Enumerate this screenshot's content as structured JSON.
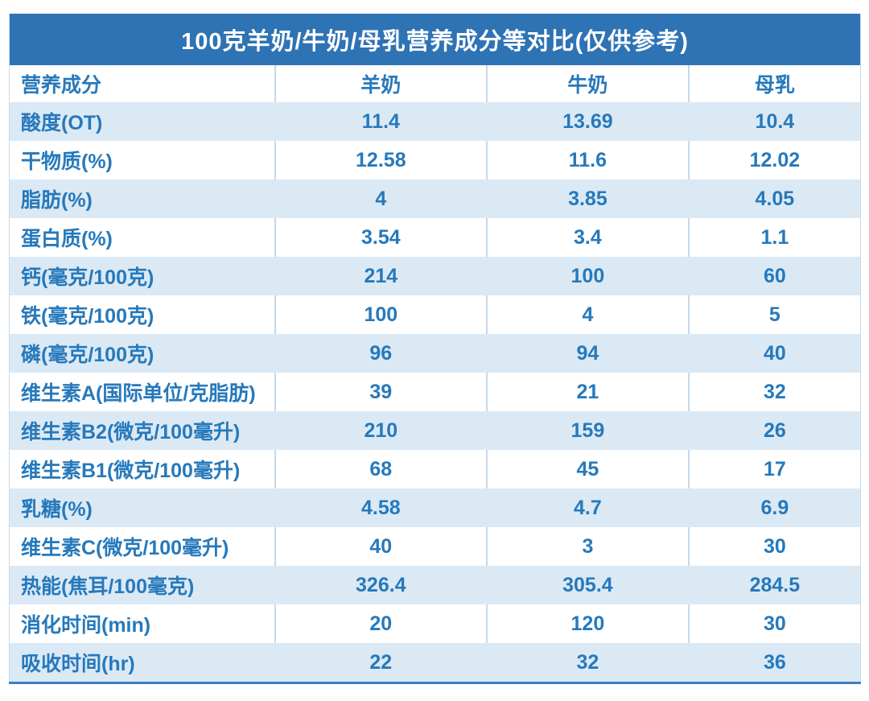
{
  "title": "100克羊奶/牛奶/母乳营养成分等对比(仅供参考)",
  "table": {
    "columns": [
      "营养成分",
      "羊奶",
      "牛奶",
      "母乳"
    ],
    "rows": [
      {
        "label": "酸度(OT)",
        "values": [
          "11.4",
          "13.69",
          "10.4"
        ]
      },
      {
        "label": "干物质(%)",
        "values": [
          "12.58",
          "11.6",
          "12.02"
        ]
      },
      {
        "label": "脂肪(%)",
        "values": [
          "4",
          "3.85",
          "4.05"
        ]
      },
      {
        "label": "蛋白质(%)",
        "values": [
          "3.54",
          "3.4",
          "1.1"
        ]
      },
      {
        "label": "钙(毫克/100克)",
        "values": [
          "214",
          "100",
          "60"
        ]
      },
      {
        "label": "铁(毫克/100克)",
        "values": [
          "100",
          "4",
          "5"
        ]
      },
      {
        "label": "磷(毫克/100克)",
        "values": [
          "96",
          "94",
          "40"
        ]
      },
      {
        "label": "维生素A(国际单位/克脂肪)",
        "values": [
          "39",
          "21",
          "32"
        ]
      },
      {
        "label": "维生素B2(微克/100毫升)",
        "values": [
          "210",
          "159",
          "26"
        ]
      },
      {
        "label": "维生素B1(微克/100毫升)",
        "values": [
          "68",
          "45",
          "17"
        ]
      },
      {
        "label": "乳糖(%)",
        "values": [
          "4.58",
          "4.7",
          "6.9"
        ]
      },
      {
        "label": "维生素C(微克/100毫升)",
        "values": [
          "40",
          "3",
          "30"
        ]
      },
      {
        "label": "热能(焦耳/100毫克)",
        "values": [
          "326.4",
          "305.4",
          "284.5"
        ]
      },
      {
        "label": "消化时间(min)",
        "values": [
          "20",
          "120",
          "30"
        ]
      },
      {
        "label": "吸收时间(hr)",
        "values": [
          "22",
          "32",
          "36"
        ]
      }
    ]
  },
  "chart_data": {
    "type": "table",
    "title": "100克羊奶/牛奶/母乳营养成分等对比(仅供参考)",
    "columns": [
      "营养成分",
      "羊奶",
      "牛奶",
      "母乳"
    ],
    "rows": [
      [
        "酸度(OT)",
        11.4,
        13.69,
        10.4
      ],
      [
        "干物质(%)",
        12.58,
        11.6,
        12.02
      ],
      [
        "脂肪(%)",
        4,
        3.85,
        4.05
      ],
      [
        "蛋白质(%)",
        3.54,
        3.4,
        1.1
      ],
      [
        "钙(毫克/100克)",
        214,
        100,
        60
      ],
      [
        "铁(毫克/100克)",
        100,
        4,
        5
      ],
      [
        "磷(毫克/100克)",
        96,
        94,
        40
      ],
      [
        "维生素A(国际单位/克脂肪)",
        39,
        21,
        32
      ],
      [
        "维生素B2(微克/100毫升)",
        210,
        159,
        26
      ],
      [
        "维生素B1(微克/100毫升)",
        68,
        45,
        17
      ],
      [
        "乳糖(%)",
        4.58,
        4.7,
        6.9
      ],
      [
        "维生素C(微克/100毫升)",
        40,
        3,
        30
      ],
      [
        "热能(焦耳/100毫克)",
        326.4,
        305.4,
        284.5
      ],
      [
        "消化时间(min)",
        20,
        120,
        30
      ],
      [
        "吸收时间(hr)",
        22,
        32,
        36
      ]
    ],
    "layout": {
      "striping": "first data row shaded, alternating",
      "value_alignment": "center",
      "label_alignment": "left"
    }
  },
  "colors": {
    "title_bar": "#2e73b4",
    "title_text": "#ffffff",
    "cell_text": "#2679bb",
    "stripe_row": "#dbe9f5",
    "grid_line": "#c6d9ec",
    "bottom_rule": "#3b80c0"
  }
}
